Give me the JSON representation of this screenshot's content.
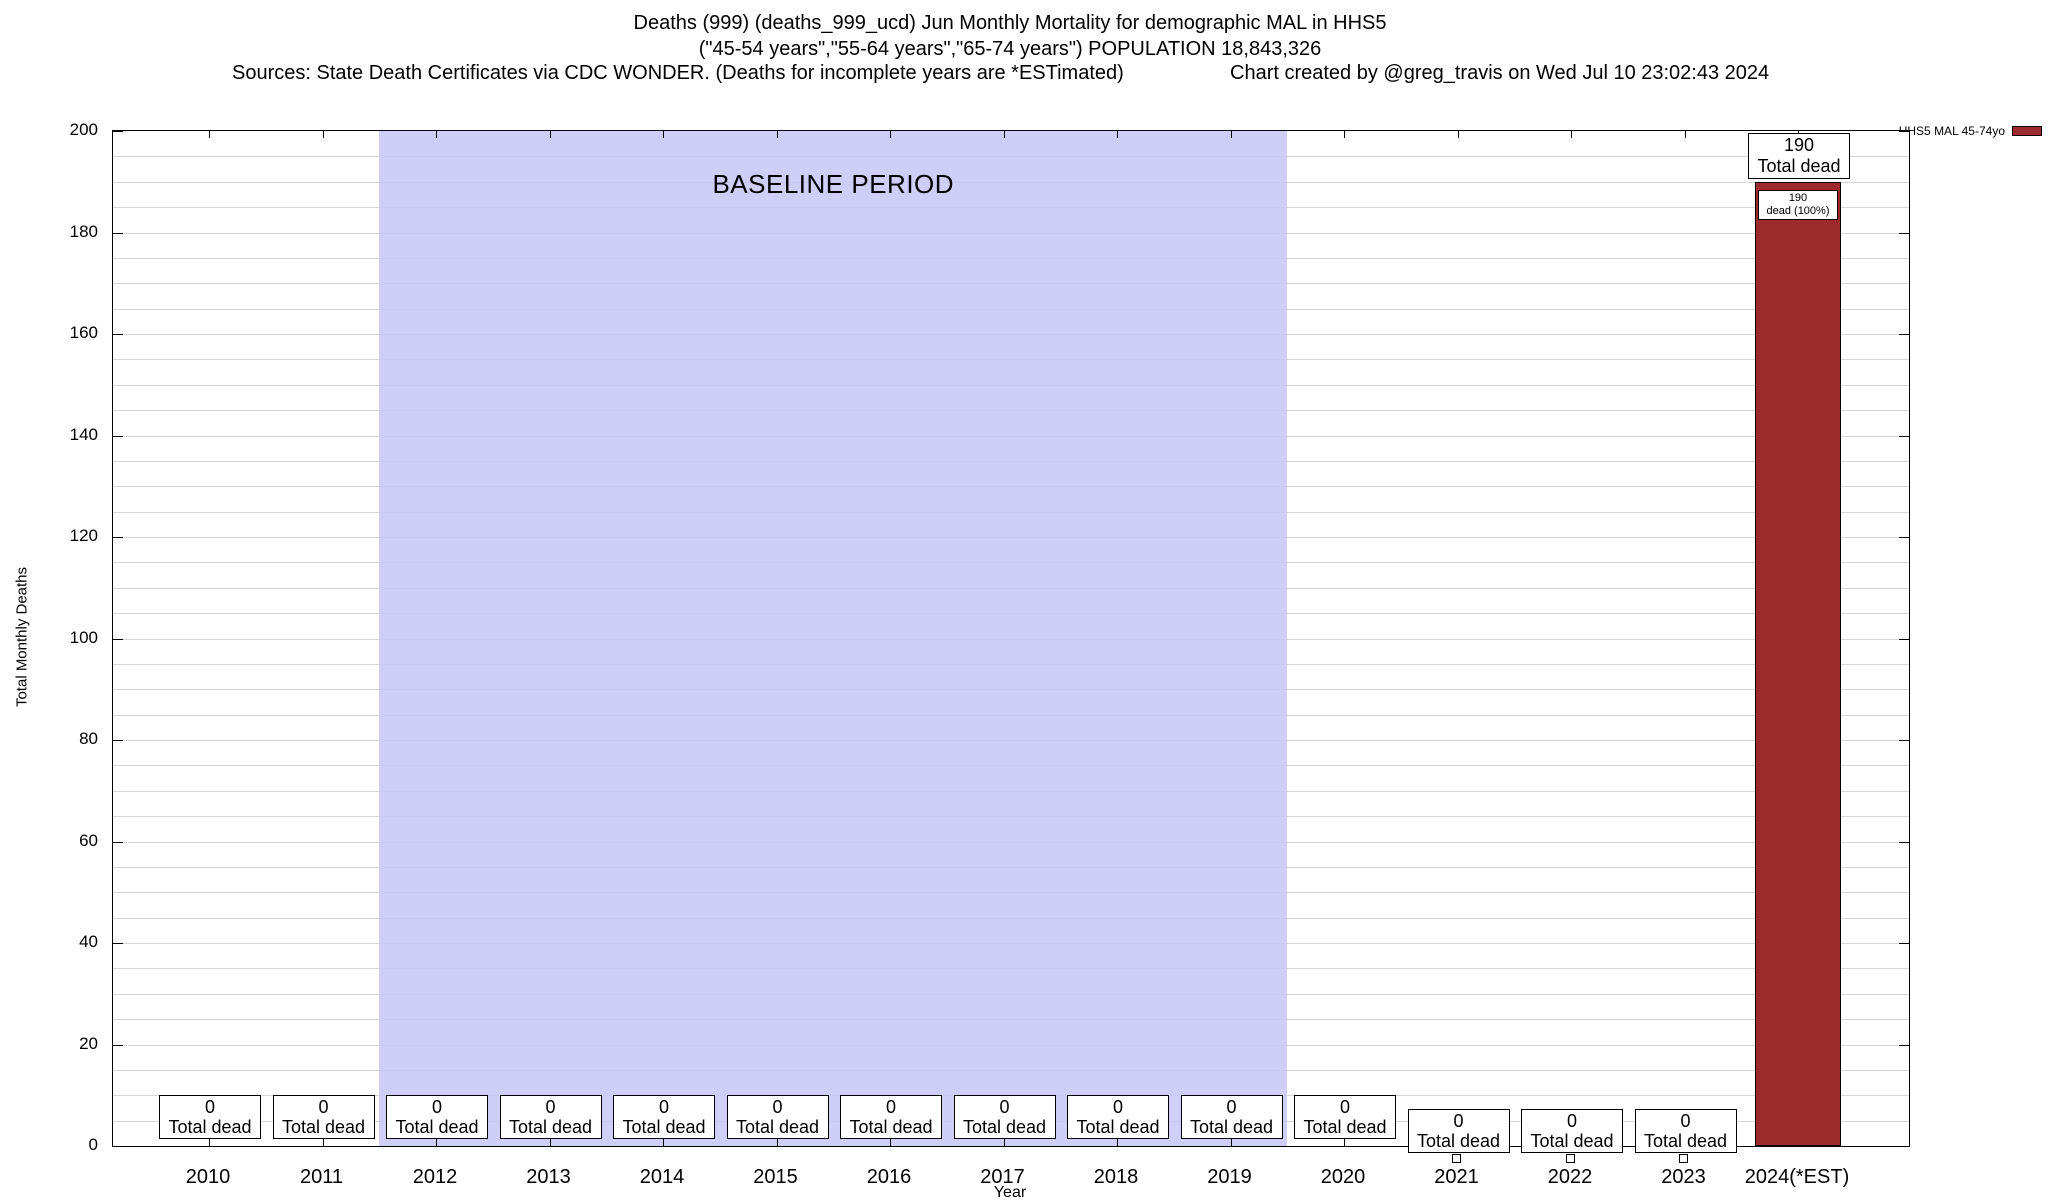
{
  "chart_data": {
    "type": "bar",
    "title": "Deaths (999) (deaths_999_ucd) Jun Monthly Mortality for demographic MAL in HHS5",
    "subtitle": "(\"45-54 years\",\"55-64 years\",\"65-74 years\") POPULATION 18,843,326",
    "sources_note": "Sources: State Death Certificates via CDC WONDER. (Deaths for incomplete years are *ESTimated)",
    "credit": "Chart created by @greg_travis on Wed Jul 10 23:02:43 2024",
    "xlabel": "Year",
    "ylabel": "Total Monthly Deaths",
    "ylim": [
      0,
      200
    ],
    "yticks": [
      0,
      20,
      40,
      60,
      80,
      100,
      120,
      140,
      160,
      180,
      200
    ],
    "minor_grid_step": 5,
    "grid": true,
    "categories": [
      "2010",
      "2011",
      "2012",
      "2013",
      "2014",
      "2015",
      "2016",
      "2017",
      "2018",
      "2019",
      "2020",
      "2021",
      "2022",
      "2023",
      "2024(*EST)"
    ],
    "values": [
      0,
      0,
      0,
      0,
      0,
      0,
      0,
      0,
      0,
      0,
      0,
      0,
      0,
      0,
      190
    ],
    "box_label": "Total dead",
    "lowered_box_years": [
      "2021",
      "2022",
      "2023"
    ],
    "marker_years": [
      "2021",
      "2022",
      "2023"
    ],
    "baseline": {
      "label": "BASELINE PERIOD",
      "from": "2012",
      "to": "2019",
      "color": "#c6c6f6"
    },
    "bar": {
      "color": "#9e2b2b",
      "value_label": "190",
      "total_label": "Total dead",
      "inner_value": "190",
      "inner_label": "dead (100%)"
    },
    "legend": {
      "label": "HHS5 MAL 45-74yo",
      "color": "#9e2b2b",
      "position": "top-right"
    }
  }
}
